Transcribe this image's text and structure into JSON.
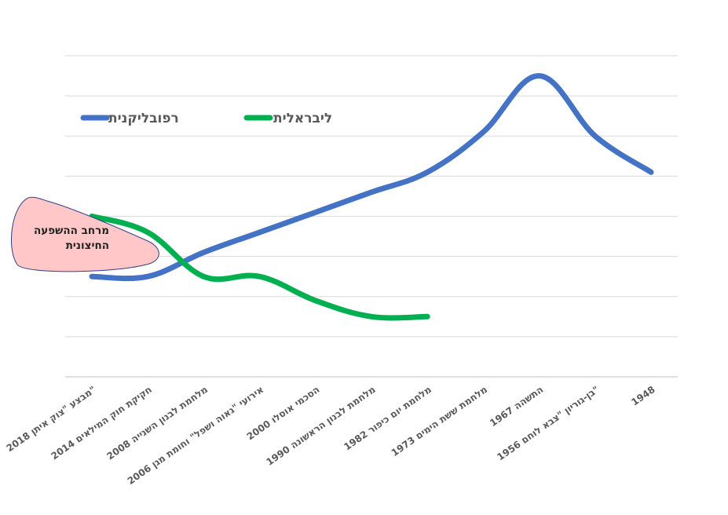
{
  "chart_data": {
    "type": "line",
    "categories": [
      "2018 מבצע \"צוק איתן\"",
      "2014 חקיקת חוק המילאים",
      "2008 מלחמת לבנון השנייה",
      "2006 אירועי \"גאוה ושפל\" וחומת מגן",
      "2000 הסכמי אוסלו",
      "1990 מלחמת לבנון הראשונה",
      "1982 מלחמת יום כיפור",
      "1973 מלחמת ששת הימים",
      "1967 התשהה",
      "1956 בן-גוריון \"צבא לוחם\"",
      "1948"
    ],
    "series": [
      {
        "name": "רפובליקנית",
        "color": "#4472C4",
        "values": [
          2.5,
          2.5,
          3.1,
          3.6,
          4.1,
          4.6,
          5.1,
          6.1,
          7.5,
          6.0,
          5.1
        ]
      },
      {
        "name": "ליבראלית",
        "color": "#00B050",
        "values": [
          4.0,
          3.6,
          2.5,
          2.5,
          1.9,
          1.5,
          1.5,
          null,
          null,
          null,
          null
        ]
      }
    ],
    "ylim": [
      0,
      8
    ],
    "grid": true,
    "legend": "top-left",
    "annotation": {
      "text": [
        "מרחב ההשפעה",
        "החיצונית"
      ],
      "fill": "#FFC7C7",
      "stroke": "#2F3E8A"
    }
  }
}
